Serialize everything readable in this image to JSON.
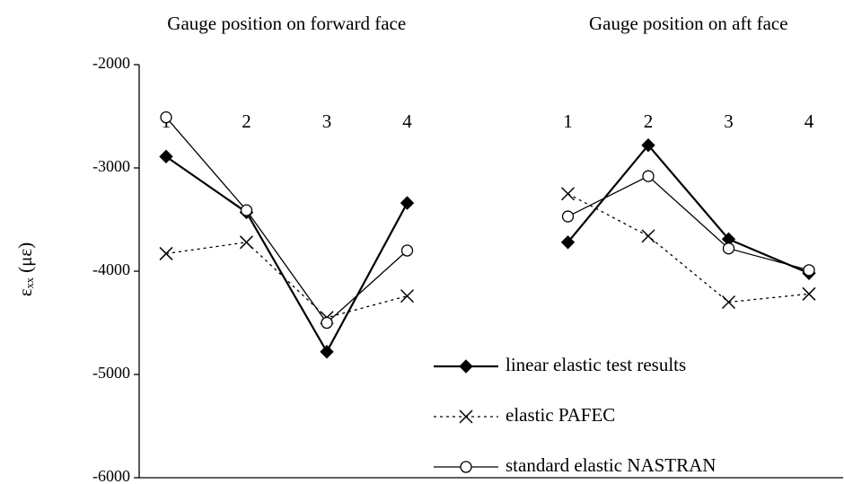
{
  "chart_data": {
    "type": "line",
    "group_labels": [
      "Gauge position on forward face",
      "Gauge position on aft face"
    ],
    "y_label": "εₓₓ (με)",
    "categories": [
      "1",
      "2",
      "3",
      "4",
      null,
      "1",
      "2",
      "3",
      "4"
    ],
    "series": [
      {
        "name": "linear elastic test results",
        "color": "#000000",
        "marker": "diamond",
        "dash": "solid",
        "width": 2.2,
        "values": [
          -2890,
          -3430,
          -4780,
          -3340,
          null,
          -3720,
          -2780,
          -3690,
          -4020
        ]
      },
      {
        "name": "elastic PAFEC",
        "color": "#000000",
        "marker": "x",
        "dash": "dotted",
        "width": 1.3,
        "values": [
          -3830,
          -3720,
          -4450,
          -4240,
          null,
          -3250,
          -3660,
          -4300,
          -4220
        ]
      },
      {
        "name": "standard elastic NASTRAN",
        "color": "#000000",
        "marker": "circle",
        "dash": "solid",
        "width": 1.3,
        "values": [
          -2510,
          -3410,
          -4500,
          -3800,
          null,
          -3470,
          -3080,
          -3780,
          -3990
        ]
      }
    ],
    "ylim": [
      -6000,
      -2000
    ],
    "yticks": [
      -6000,
      -5000,
      -4000,
      -3000,
      -2000
    ],
    "grid": false,
    "legend": "lower right"
  }
}
